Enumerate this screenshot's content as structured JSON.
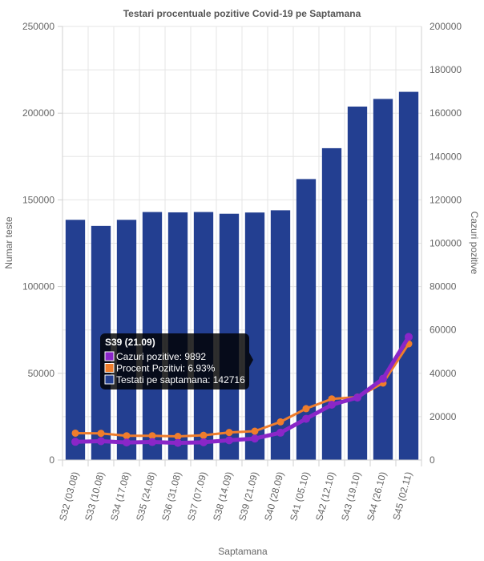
{
  "chart_data": {
    "type": "bar",
    "title": "Testari procentuale pozitive Covid-19 pe Saptamana",
    "xlabel": "Saptamana",
    "ylabel_left": "Numar teste",
    "ylabel_right": "Cazuri pozitive",
    "ylim_left": [
      0,
      250000
    ],
    "ylim_right": [
      0,
      200000
    ],
    "yticks_left": [
      "0",
      "50000",
      "100000",
      "150000",
      "200000",
      "250000"
    ],
    "yticks_right": [
      "0",
      "20000",
      "40000",
      "60000",
      "80000",
      "100000",
      "120000",
      "140000",
      "160000",
      "180000",
      "200000"
    ],
    "categories": [
      "S32 (03.08)",
      "S33 (10.08)",
      "S34 (17.08)",
      "S35 (24.08)",
      "S36 (31.08)",
      "S37 (07.09)",
      "S38 (14.09)",
      "S39 (21.09)",
      "S40 (28.09)",
      "S41 (05.10)",
      "S42 (12.10)",
      "S43 (19.10)",
      "S44 (26.10)",
      "S45 (02.11)"
    ],
    "series": [
      {
        "name": "Testati pe saptamana",
        "type": "bar",
        "axis": "left",
        "color": "#233f91",
        "values": [
          138500,
          135000,
          138500,
          143000,
          142800,
          143000,
          142000,
          142716,
          144000,
          162000,
          179800,
          203800,
          208200,
          212300
        ]
      },
      {
        "name": "Cazuri pozitive",
        "type": "line",
        "axis": "right",
        "color": "#8a26c8",
        "values": [
          8400,
          8700,
          8100,
          8300,
          7900,
          8200,
          9100,
          9892,
          12600,
          19000,
          25500,
          28800,
          37500,
          56800
        ]
      },
      {
        "name": "Procent Pozitivi",
        "type": "line",
        "axis": "right",
        "color": "#ef7d2c",
        "values": [
          12400,
          12300,
          11200,
          11200,
          10900,
          11400,
          12700,
          13300,
          17600,
          23700,
          28200,
          29000,
          35500,
          53600
        ]
      }
    ],
    "tooltip": {
      "title": "S39 (21.09)",
      "lines": [
        {
          "label": "Cazuri pozitive: 9892",
          "color": "#8a26c8"
        },
        {
          "label": "Procent Pozitivi: 6.93%",
          "color": "#ef7d2c"
        },
        {
          "label": "Testati pe saptamana: 142716",
          "color": "#233f91"
        }
      ]
    }
  }
}
